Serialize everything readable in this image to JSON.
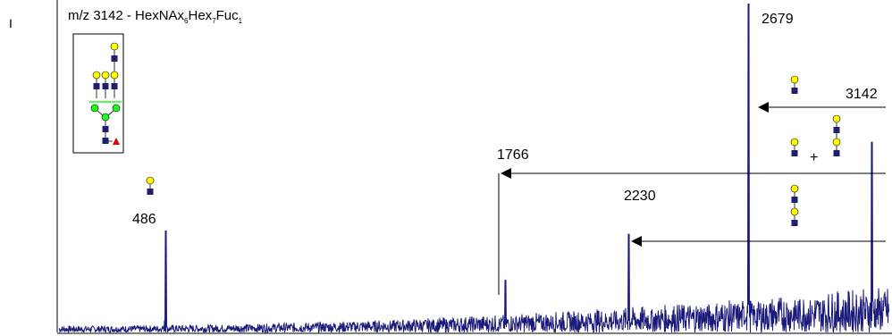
{
  "chart_data": {
    "type": "line",
    "panel_label": "I",
    "title_parts": [
      {
        "t": "m/z 3142 - HexNAx",
        "sub": false
      },
      {
        "t": "6",
        "sub": true
      },
      {
        "t": "Hex",
        "sub": false
      },
      {
        "t": "7",
        "sub": true
      },
      {
        "t": "Fuc",
        "sub": false
      },
      {
        "t": "1",
        "sub": true
      }
    ],
    "xlim": [
      86,
      3205
    ],
    "ylim": [
      0,
      100
    ],
    "baseline_noise": 2,
    "series": [
      {
        "values": [
          {
            "x": 486,
            "y": 31
          },
          {
            "x": 1766,
            "y": 16
          },
          {
            "x": 2230,
            "y": 30
          },
          {
            "x": 2679,
            "y": 100
          },
          {
            "x": 3142,
            "y": 58
          }
        ]
      }
    ],
    "peak_labels": [
      "486",
      "1766",
      "2230",
      "2679",
      "3142"
    ],
    "annotations": [
      {
        "from_mz": 3142,
        "to_mz": 2679
      },
      {
        "from_mz": 3142,
        "to_mz": 1766
      },
      {
        "from_mz": 3142,
        "to_mz": 2230
      }
    ],
    "plus_sign": "+",
    "colors": {
      "spectrum": "#1a1a7a",
      "hexnac": "#1f1f6e",
      "hex": "#ffff00",
      "man": "#1aff1a",
      "fuc": "#e00000"
    }
  }
}
